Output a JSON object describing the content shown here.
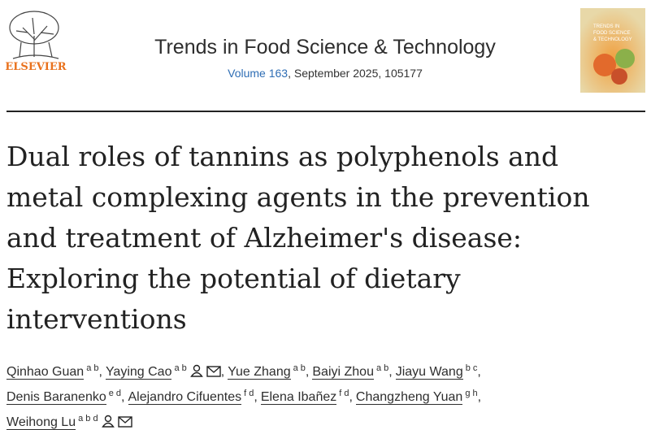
{
  "header": {
    "publisher": "ELSEVIER",
    "journal": "Trends in Food Science & Technology",
    "volume": "Volume 163",
    "issue_info": ", September 2025, 105177",
    "cover_lines": [
      "TRENDS IN",
      "FOOD SCIENCE",
      "& TECHNOLOGY"
    ]
  },
  "article": {
    "title_lines": [
      "Dual roles of tannins as polyphenols and",
      "metal complexing agents in the prevention",
      "and treatment of Alzheimer's disease:",
      "Exploring the potential of dietary",
      "interventions"
    ],
    "author_separator": ",",
    "authors": [
      {
        "name": "Qinhao Guan",
        "affiliations": "a b"
      },
      {
        "name": "Yaying Cao",
        "affiliations": "a b",
        "corresponding": true
      },
      {
        "name": "Yue Zhang",
        "affiliations": "a b"
      },
      {
        "name": "Baiyi Zhou",
        "affiliations": "a b"
      },
      {
        "name": "Jiayu Wang",
        "affiliations": "b c"
      },
      {
        "name": "Denis Baranenko",
        "affiliations": "e d"
      },
      {
        "name": "Alejandro Cifuentes",
        "affiliations": "f d"
      },
      {
        "name": "Elena Ibañez",
        "affiliations": "f d"
      },
      {
        "name": "Changzheng Yuan",
        "affiliations": "g h"
      },
      {
        "name": "Weihong Lu",
        "affiliations": "a b d",
        "corresponding": true
      }
    ]
  }
}
